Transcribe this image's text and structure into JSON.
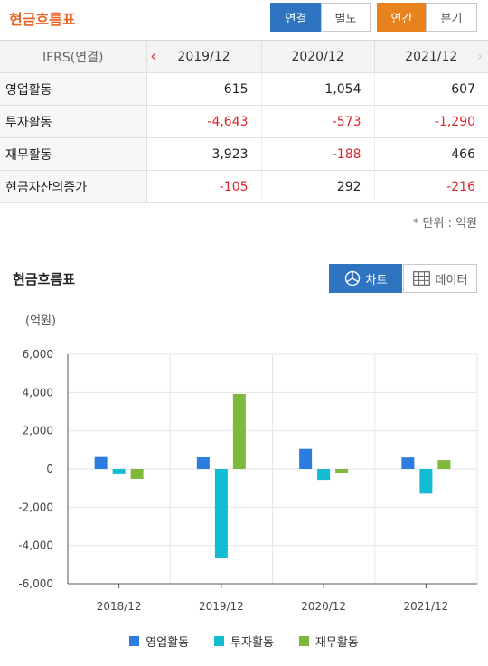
{
  "header": {
    "title": "현금흐름표",
    "buttons": [
      "연결",
      "별도",
      "연간",
      "분기"
    ]
  },
  "table": {
    "corner": "IFRS(연결)",
    "periods": [
      "2019/12",
      "2020/12",
      "2021/12"
    ],
    "rows": [
      {
        "label": "영업활동",
        "values": [
          "615",
          "1,054",
          "607"
        ]
      },
      {
        "label": "투자활동",
        "values": [
          "-4,643",
          "-573",
          "-1,290"
        ]
      },
      {
        "label": "재무활동",
        "values": [
          "3,923",
          "-188",
          "466"
        ]
      },
      {
        "label": "현금자산의증가",
        "values": [
          "-105",
          "292",
          "-216"
        ]
      }
    ],
    "unit_note": "* 단위 : 억원"
  },
  "chart_section": {
    "title": "현금흐름표",
    "toggle_chart": "차트",
    "toggle_data": "데이터",
    "y_unit": "(억원)"
  },
  "colors": {
    "accent_orange": "#e8652a",
    "toggle_blue": "#2f74c0",
    "negative_red": "#d9262b",
    "series": [
      "#2b7de0",
      "#12bcd1",
      "#7fb93c"
    ]
  },
  "chart_data": {
    "type": "bar",
    "categories": [
      "2018/12",
      "2019/12",
      "2020/12",
      "2021/12"
    ],
    "series": [
      {
        "name": "영업활동",
        "values": [
          630,
          615,
          1054,
          607
        ]
      },
      {
        "name": "투자활동",
        "values": [
          -230,
          -4643,
          -573,
          -1290
        ]
      },
      {
        "name": "재무활동",
        "values": [
          -520,
          3923,
          -188,
          466
        ]
      }
    ],
    "ylim": [
      -6000,
      6000
    ],
    "yticks": [
      6000,
      4000,
      2000,
      0,
      -2000,
      -4000,
      -6000
    ],
    "ytick_labels": [
      "6,000",
      "4,000",
      "2,000",
      "0",
      "-2,000",
      "-4,000",
      "-6,000"
    ],
    "grid": true,
    "legend": "bottom"
  }
}
